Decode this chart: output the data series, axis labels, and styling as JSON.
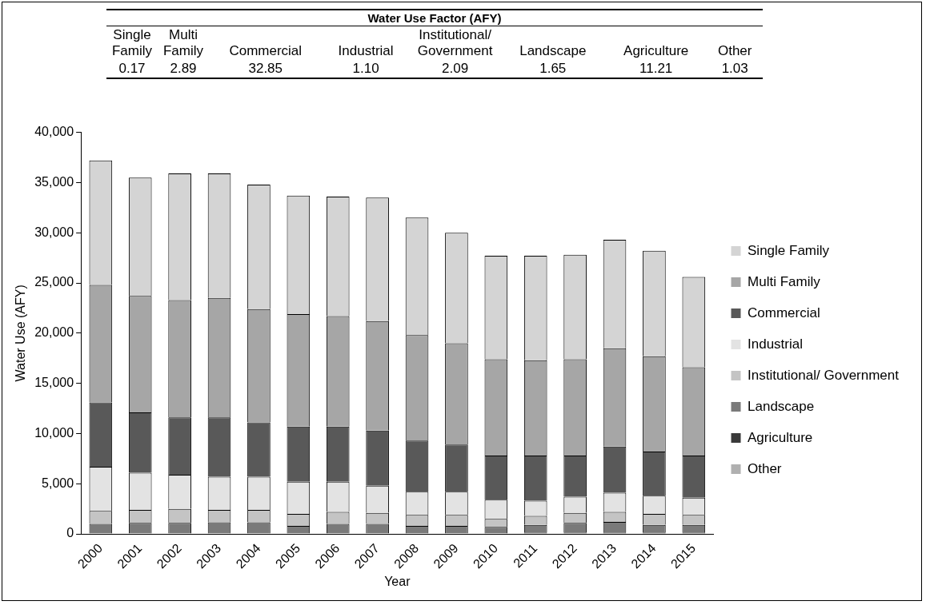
{
  "chart_data": [
    {
      "type": "other",
      "title": "Water Use Factor (AFY)",
      "categories": [
        "Single Family",
        "Multi Family",
        "Commercial",
        "Industrial",
        "Institutional/ Government",
        "Landscape",
        "Agriculture",
        "Other"
      ],
      "values": [
        0.17,
        2.89,
        32.85,
        1.1,
        2.09,
        1.65,
        11.21,
        1.03
      ],
      "value_labels": [
        "0.17",
        "2.89",
        "32.85",
        "1.10",
        "2.09",
        "1.65",
        "11.21",
        "1.03"
      ]
    },
    {
      "type": "bar",
      "stacked": true,
      "xlabel": "Year",
      "ylabel": "Water Use (AFY)",
      "categories": [
        "2000",
        "2001",
        "2002",
        "2003",
        "2004",
        "2005",
        "2006",
        "2007",
        "2008",
        "2009",
        "2010",
        "2011",
        "2012",
        "2013",
        "2014",
        "2015"
      ],
      "ylim": [
        0,
        40000
      ],
      "yticks": [
        {
          "value": 0,
          "label": "0"
        },
        {
          "value": 5000,
          "label": "5,000"
        },
        {
          "value": 10000,
          "label": "10,000"
        },
        {
          "value": 15000,
          "label": "15,000"
        },
        {
          "value": 20000,
          "label": "20,000"
        },
        {
          "value": 25000,
          "label": "25,000"
        },
        {
          "value": 30000,
          "label": "30,000"
        },
        {
          "value": 35000,
          "label": "35,000"
        },
        {
          "value": 40000,
          "label": "40,000"
        }
      ],
      "legend": "right",
      "grid": false,
      "series": [
        {
          "name": "Other",
          "color": "#b0b0b0",
          "values": [
            0,
            0,
            0,
            0,
            0,
            0,
            0,
            0,
            0,
            0,
            0,
            0,
            0,
            0,
            0,
            0
          ]
        },
        {
          "name": "Agriculture",
          "color": "#3a3a3a",
          "values": [
            0,
            0,
            0,
            0,
            0,
            0,
            0,
            0,
            0,
            0,
            0,
            150,
            150,
            150,
            150,
            150
          ]
        },
        {
          "name": "Landscape",
          "color": "#7a7a7a",
          "values": [
            1000,
            1100,
            1100,
            1150,
            1150,
            800,
            1000,
            1000,
            800,
            800,
            700,
            750,
            950,
            1050,
            750,
            750
          ]
        },
        {
          "name": "Institutional/ Government",
          "color": "#c4c4c4",
          "values": [
            1300,
            1300,
            1400,
            1250,
            1250,
            1200,
            1200,
            1100,
            1100,
            1100,
            800,
            900,
            1000,
            1000,
            1100,
            1000
          ]
        },
        {
          "name": "Industrial",
          "color": "#e3e3e3",
          "values": [
            4400,
            3700,
            3400,
            3300,
            3300,
            3200,
            3000,
            2700,
            2300,
            2300,
            1900,
            1500,
            1600,
            1900,
            1800,
            1700
          ]
        },
        {
          "name": "Commercial",
          "color": "#595959",
          "values": [
            6400,
            6000,
            5700,
            5900,
            5400,
            5500,
            5500,
            5500,
            5100,
            4700,
            4400,
            4500,
            4100,
            4600,
            4400,
            4200
          ]
        },
        {
          "name": "Multi Family",
          "color": "#a6a6a6",
          "values": [
            11700,
            11600,
            11700,
            11900,
            11300,
            11200,
            11000,
            10900,
            10500,
            10100,
            9600,
            9500,
            9600,
            9800,
            9500,
            8800
          ]
        },
        {
          "name": "Single Family",
          "color": "#d4d4d4",
          "values": [
            12400,
            11800,
            12600,
            12400,
            12400,
            11800,
            11900,
            12300,
            11700,
            11000,
            10300,
            10400,
            10400,
            10800,
            10500,
            9000
          ]
        }
      ]
    }
  ]
}
